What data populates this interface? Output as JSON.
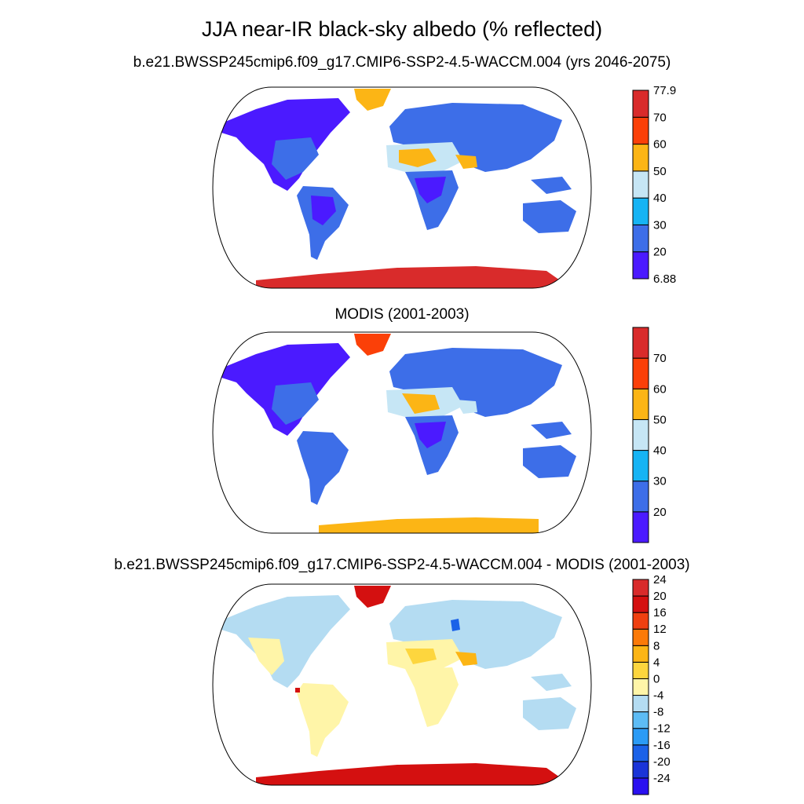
{
  "title": "JJA near-IR black-sky albedo (% reflected)",
  "panels": [
    {
      "title": "b.e21.BWSSP245cmip6.f09_g17.CMIP6-SSP2-4.5-WACCM.004 (yrs 2046-2075)",
      "colorbar": {
        "colors": [
          "#4b1aff",
          "#3d6ee8",
          "#16b4f4",
          "#c6e6f5",
          "#fcb515",
          "#fb4008",
          "#d92b2b"
        ],
        "labels": [
          "6.88",
          "20",
          "30",
          "40",
          "50",
          "60",
          "70",
          "77.9"
        ]
      }
    },
    {
      "title": "MODIS (2001-2003)",
      "colorbar": {
        "colors": [
          "#4b1aff",
          "#3d6ee8",
          "#16b4f4",
          "#c6e6f5",
          "#fcb515",
          "#fb4008",
          "#d92b2b"
        ],
        "labels": [
          "20",
          "30",
          "40",
          "50",
          "60",
          "70"
        ]
      }
    },
    {
      "title": "b.e21.BWSSP245cmip6.f09_g17.CMIP6-SSP2-4.5-WACCM.004 - MODIS (2001-2003)",
      "colorbar": {
        "colors": [
          "#2a10f0",
          "#1a34d8",
          "#1b62e8",
          "#2b9bf5",
          "#5dbcf5",
          "#b4dcf2",
          "#fff5a8",
          "#fdd63e",
          "#fcb515",
          "#fb7a08",
          "#f04010",
          "#d41010",
          "#d92b2b"
        ],
        "labels": [
          "-24",
          "-20",
          "-16",
          "-12",
          "-8",
          "-4",
          "0",
          "4",
          "8",
          "12",
          "16",
          "20",
          "24"
        ]
      }
    }
  ]
}
